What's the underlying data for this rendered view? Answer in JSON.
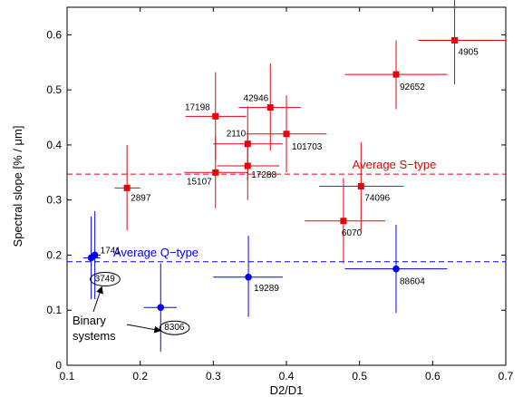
{
  "chart_data": {
    "type": "scatter",
    "xlabel": "D2/D1",
    "ylabel": "Spectral slope [% / μm]",
    "xlim": [
      0.1,
      0.7
    ],
    "ylim": [
      0,
      0.65
    ],
    "xticks": [
      "0.1",
      "0.2",
      "0.3",
      "0.4",
      "0.5",
      "0.6",
      "0.7"
    ],
    "yticks": [
      "0",
      "0.1",
      "0.2",
      "0.3",
      "0.4",
      "0.5",
      "0.6"
    ],
    "grid": false,
    "colors": {
      "s_type": "#e8000b",
      "q_type": "#0000ee"
    },
    "series": [
      {
        "type_key": "s_type",
        "marker": "square",
        "points": [
          {
            "label": "4905",
            "x": 0.63,
            "y": 0.59,
            "xerr": [
              0.58,
              0.7
            ],
            "yerr": [
              0.51,
              0.67
            ]
          },
          {
            "label": "92652",
            "x": 0.55,
            "y": 0.528,
            "xerr": [
              0.48,
              0.62
            ],
            "yerr": [
              0.465,
              0.59
            ]
          },
          {
            "label": "42946",
            "x": 0.378,
            "y": 0.468,
            "xerr": [
              0.335,
              0.42
            ],
            "yerr": [
              0.39,
              0.548
            ]
          },
          {
            "label": "17198",
            "x": 0.303,
            "y": 0.452,
            "xerr": [
              0.262,
              0.345
            ],
            "yerr": [
              0.373,
              0.532
            ]
          },
          {
            "label": "101703",
            "x": 0.4,
            "y": 0.42,
            "xerr": [
              0.345,
              0.455
            ],
            "yerr": [
              0.35,
              0.49
            ]
          },
          {
            "label": "2110",
            "x": 0.347,
            "y": 0.402,
            "xerr": [
              0.3,
              0.395
            ],
            "yerr": [
              0.335,
              0.47
            ]
          },
          {
            "label": "17288",
            "x": 0.347,
            "y": 0.362,
            "xerr": [
              0.305,
              0.39
            ],
            "yerr": [
              0.3,
              0.425
            ]
          },
          {
            "label": "15107",
            "x": 0.303,
            "y": 0.35,
            "xerr": [
              0.26,
              0.347
            ],
            "yerr": [
              0.285,
              0.415
            ]
          },
          {
            "label": "2897",
            "x": 0.182,
            "y": 0.322,
            "xerr": [
              0.165,
              0.2
            ],
            "yerr": [
              0.245,
              0.4
            ]
          },
          {
            "label": "74096",
            "x": 0.502,
            "y": 0.325,
            "xerr": [
              0.445,
              0.56
            ],
            "yerr": [
              0.245,
              0.405
            ]
          },
          {
            "label": "6070",
            "x": 0.478,
            "y": 0.262,
            "xerr": [
              0.425,
              0.535
            ],
            "yerr": [
              0.185,
              0.34
            ]
          }
        ]
      },
      {
        "type_key": "q_type",
        "marker": "circle",
        "points": [
          {
            "label": "1741",
            "x": 0.138,
            "y": 0.2,
            "xerr": [
              0.13,
              0.146
            ],
            "yerr": [
              0.12,
              0.28
            ]
          },
          {
            "label": "3749",
            "x": 0.133,
            "y": 0.195,
            "xerr": [
              0.122,
              0.145
            ],
            "yerr": [
              0.12,
              0.27
            ]
          },
          {
            "label": "19289",
            "x": 0.348,
            "y": 0.16,
            "xerr": [
              0.3,
              0.395
            ],
            "yerr": [
              0.088,
              0.235
            ]
          },
          {
            "label": "88604",
            "x": 0.55,
            "y": 0.175,
            "xerr": [
              0.48,
              0.62
            ],
            "yerr": [
              0.095,
              0.255
            ]
          },
          {
            "label": "8306",
            "x": 0.228,
            "y": 0.105,
            "xerr": [
              0.205,
              0.25
            ],
            "yerr": [
              0.025,
              0.185
            ]
          }
        ]
      }
    ],
    "reference_lines": [
      {
        "label": "Average S−type",
        "y": 0.347,
        "type_key": "s_type",
        "style": "dashed"
      },
      {
        "label": "Average Q−type",
        "y": 0.188,
        "type_key": "q_type",
        "style": "dashed"
      }
    ],
    "annotation": {
      "text_lines": [
        "Binary",
        "systems"
      ],
      "circled_labels": [
        "3749",
        "8306"
      ]
    }
  }
}
